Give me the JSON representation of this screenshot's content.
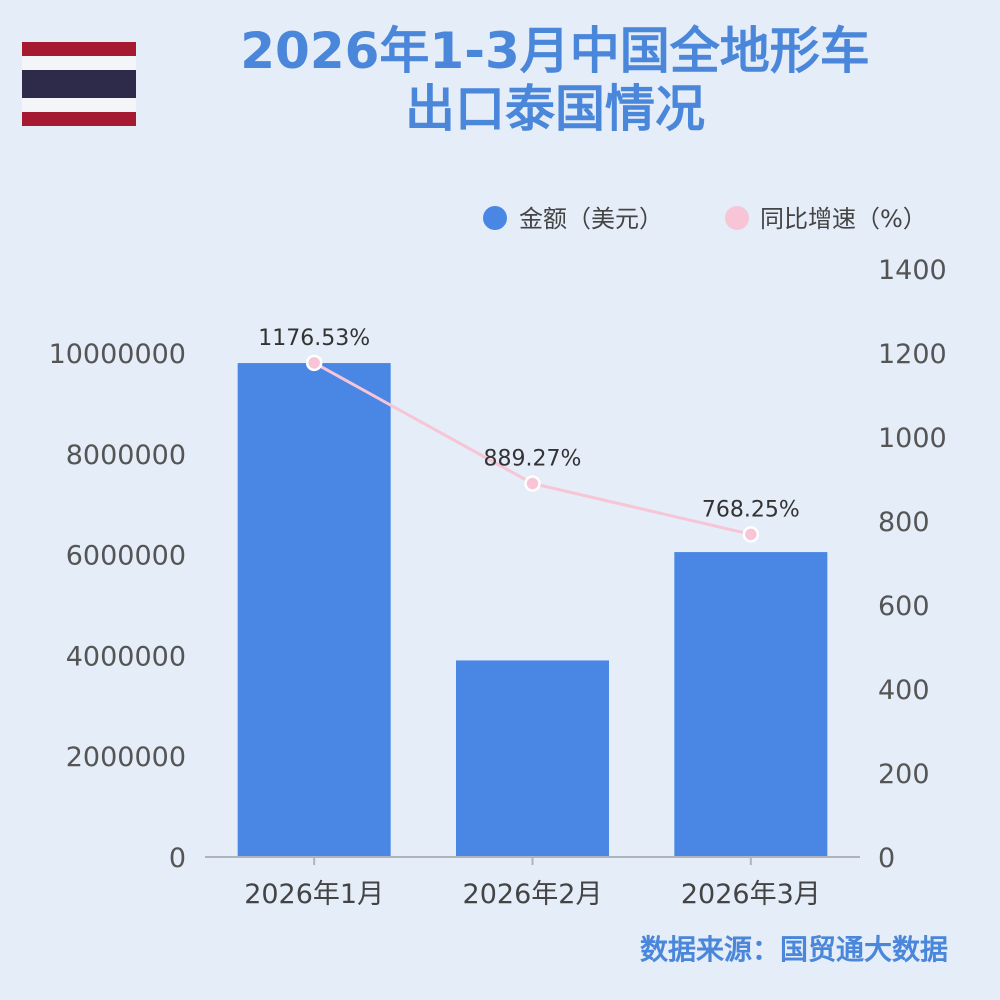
{
  "title_lines": [
    "2026年1-3月中国全地形车",
    "出口泰国情况"
  ],
  "source": "数据来源：国贸通大数据",
  "flag": {
    "country": "Thailand",
    "colors": [
      "#a51931",
      "#f4f5f8",
      "#2d2a4a"
    ]
  },
  "chart_data": {
    "type": "bar",
    "categories": [
      "2026年1月",
      "2026年2月",
      "2026年3月"
    ],
    "series": [
      {
        "name": "金额（美元）",
        "type": "bar",
        "axis": "left",
        "color": "#4a86e3",
        "values": [
          9800000,
          3900000,
          6050000
        ]
      },
      {
        "name": "同比增速（%）",
        "type": "line",
        "axis": "right",
        "color": "#f7c5d6",
        "values": [
          1176.53,
          889.27,
          768.25
        ],
        "labels": [
          "1176.53%",
          "889.27%",
          "768.25%"
        ]
      }
    ],
    "y_left": {
      "min": 0,
      "max": 10000000,
      "ticks": [
        "0",
        "2000000",
        "4000000",
        "6000000",
        "8000000",
        "10000000"
      ]
    },
    "y_right": {
      "min": 0,
      "max": 1400,
      "ticks": [
        "0",
        "200",
        "400",
        "600",
        "800",
        "1000",
        "1200",
        "1400"
      ]
    },
    "legend_position": "top-right",
    "grid": false
  }
}
